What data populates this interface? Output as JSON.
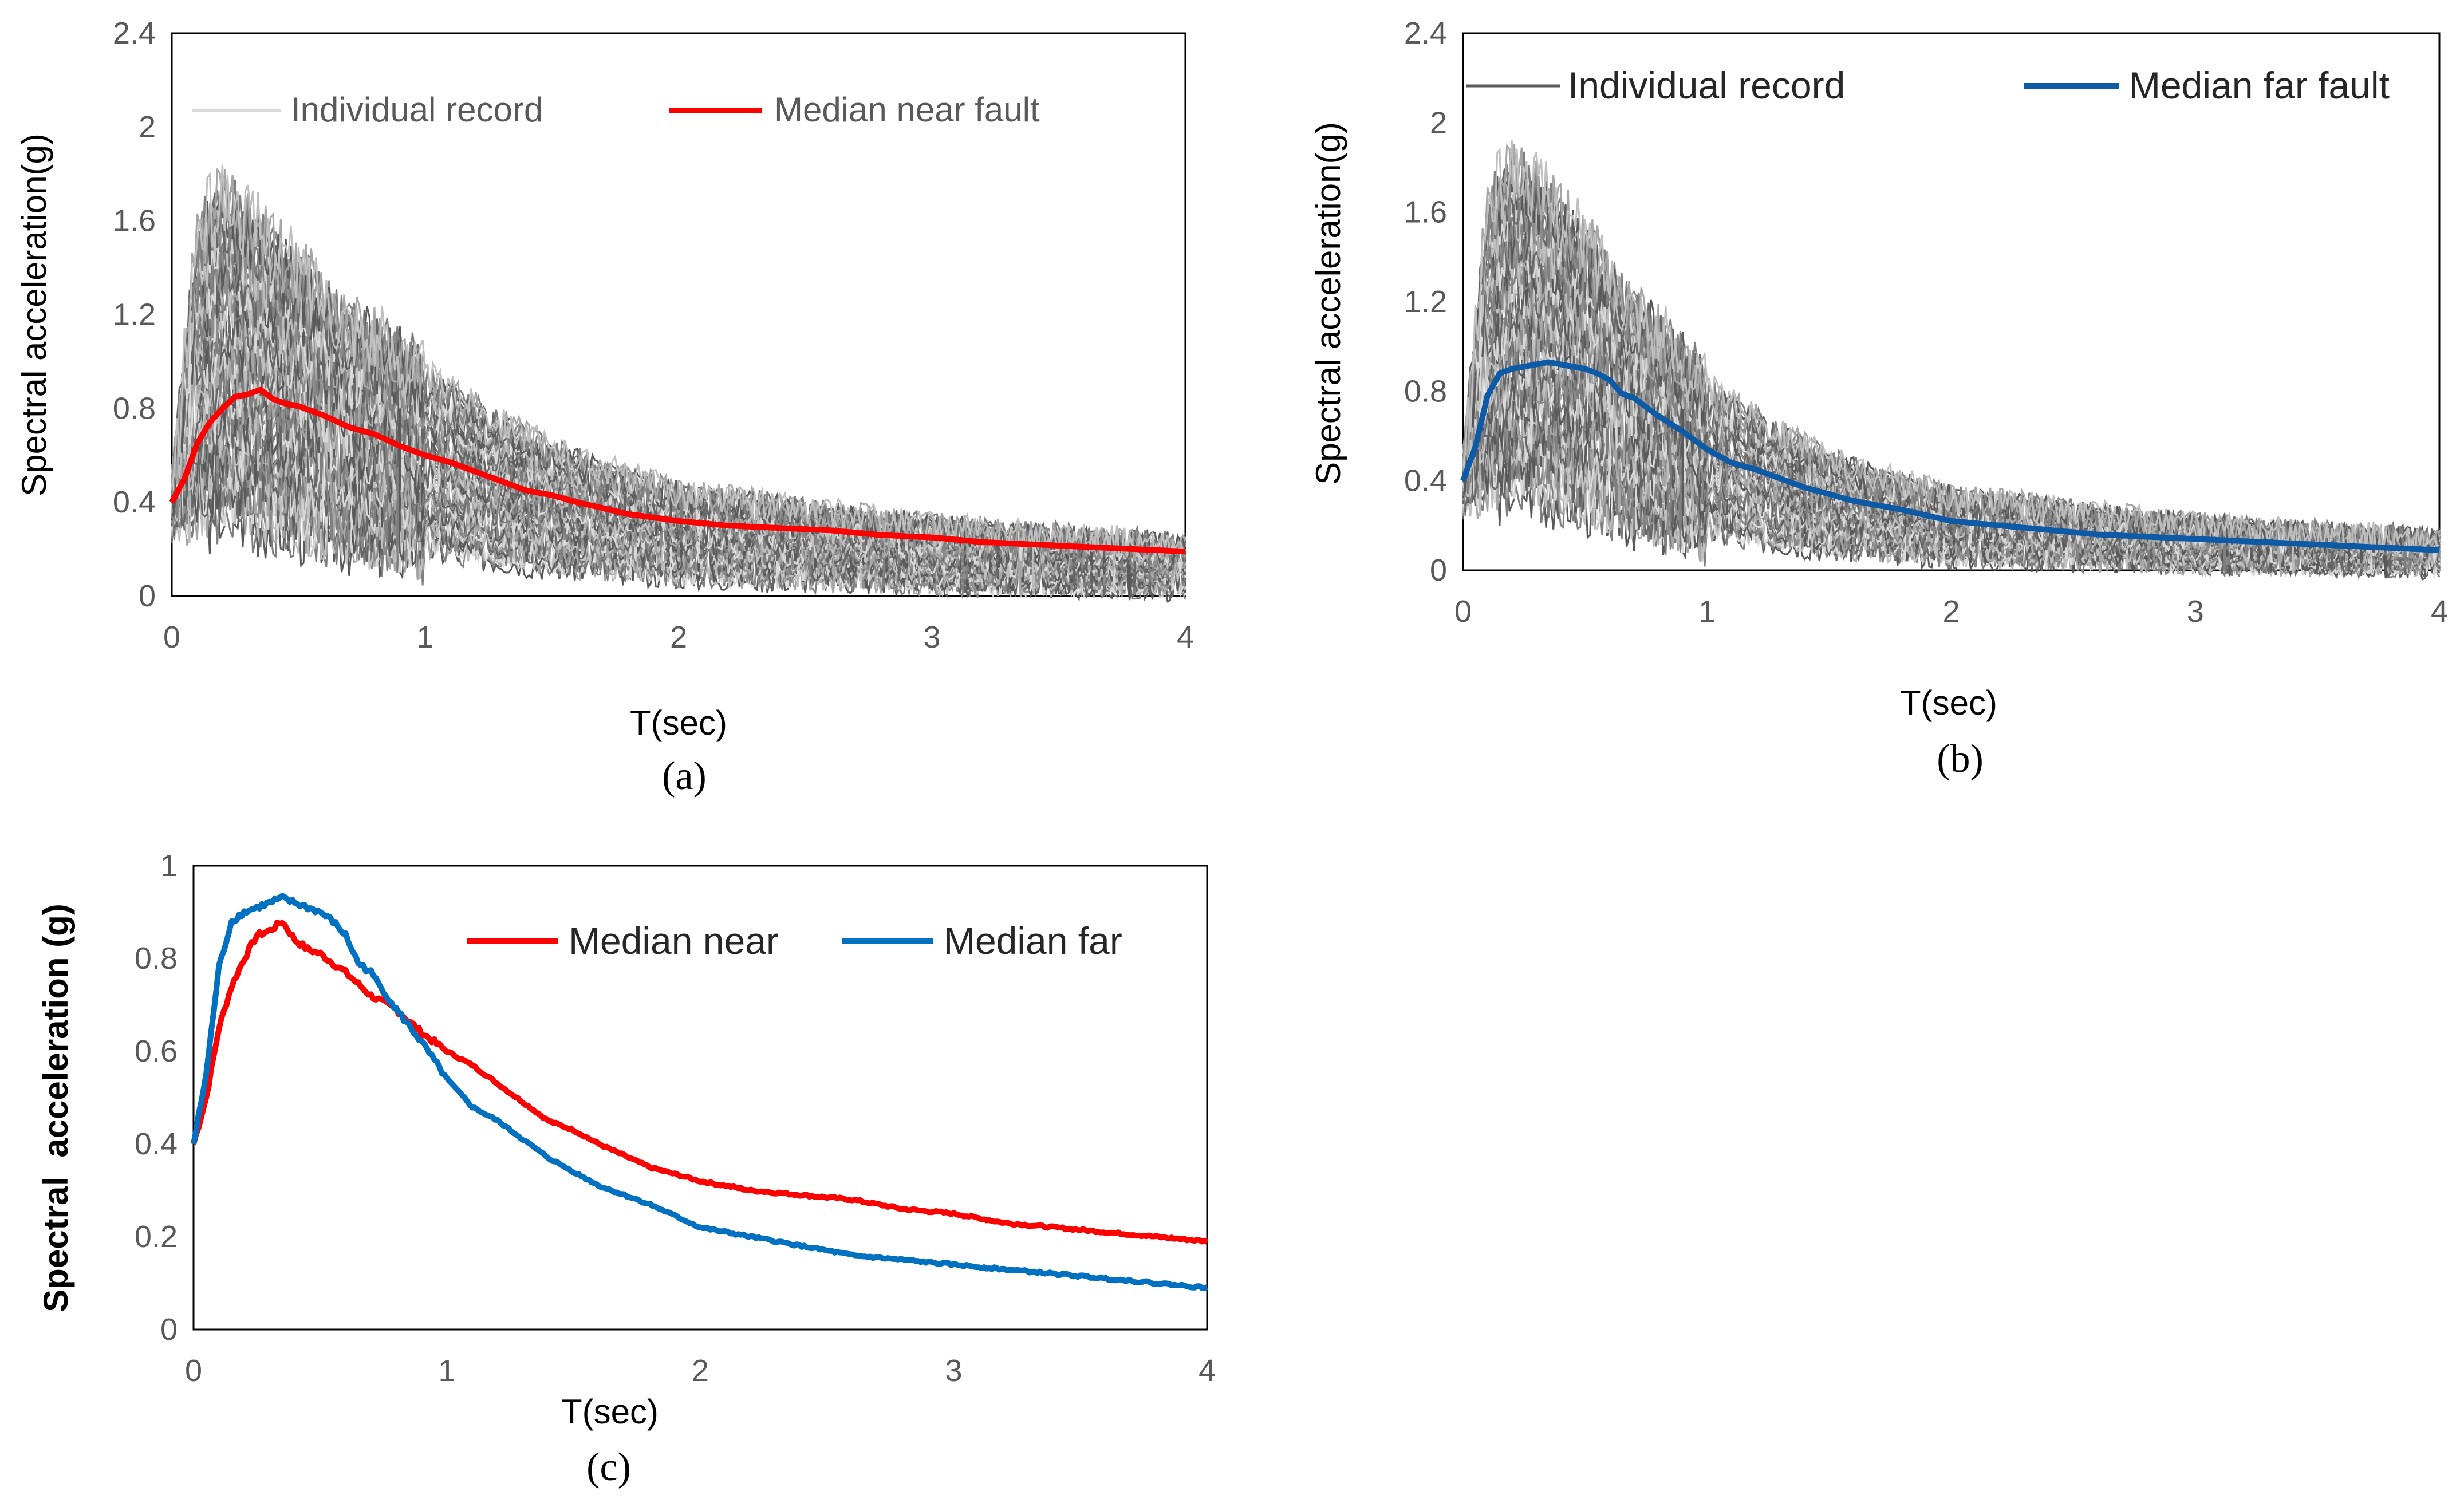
{
  "chart_data": [
    {
      "id": "a",
      "type": "line",
      "caption": "(a)",
      "xlabel": "T(sec)",
      "ylabel": "Spectral acceleration(g)",
      "xlim": [
        0,
        4
      ],
      "ylim": [
        0,
        2.4
      ],
      "x_ticks": [
        "0",
        "1",
        "2",
        "3",
        "4"
      ],
      "y_ticks": [
        "0",
        "0.4",
        "0.8",
        "1.2",
        "1.6",
        "2",
        "2.4"
      ],
      "legend_position": "top",
      "colors": {
        "median": "#ff0000",
        "records": "#7f7f7f"
      },
      "series": [
        {
          "name": "Individual record",
          "style": "gray-thin-bundle",
          "x": [
            0,
            0.1,
            0.2,
            0.3,
            0.5,
            0.7,
            1.0,
            1.5,
            2.0,
            3.0,
            4.0
          ],
          "values": [
            0.4,
            0.95,
            1.05,
            0.98,
            0.85,
            0.72,
            0.58,
            0.38,
            0.27,
            0.18,
            0.13
          ]
        },
        {
          "name": "Median near fault",
          "style": "median",
          "x": [
            0,
            0.05,
            0.1,
            0.15,
            0.2,
            0.25,
            0.3,
            0.35,
            0.4,
            0.45,
            0.5,
            0.6,
            0.7,
            0.8,
            0.9,
            1.0,
            1.1,
            1.2,
            1.3,
            1.4,
            1.5,
            1.6,
            1.8,
            2.0,
            2.2,
            2.4,
            2.6,
            2.8,
            3.0,
            3.2,
            3.4,
            3.6,
            3.8,
            4.0
          ],
          "values": [
            0.4,
            0.5,
            0.65,
            0.74,
            0.8,
            0.85,
            0.86,
            0.88,
            0.84,
            0.82,
            0.81,
            0.77,
            0.72,
            0.69,
            0.64,
            0.6,
            0.57,
            0.53,
            0.49,
            0.45,
            0.43,
            0.4,
            0.35,
            0.32,
            0.3,
            0.29,
            0.28,
            0.26,
            0.25,
            0.23,
            0.22,
            0.21,
            0.2,
            0.19
          ]
        }
      ]
    },
    {
      "id": "b",
      "type": "line",
      "caption": "(b)",
      "xlabel": "T(sec)",
      "ylabel": "Spectral acceleration(g)",
      "xlim": [
        0,
        4
      ],
      "ylim": [
        0,
        2.4
      ],
      "x_ticks": [
        "0",
        "1",
        "2",
        "3",
        "4"
      ],
      "y_ticks": [
        "0",
        "0.4",
        "0.8",
        "1.2",
        "1.6",
        "2",
        "2.4"
      ],
      "legend_position": "top",
      "colors": {
        "median": "#0d5aa7",
        "records": "#7f7f7f"
      },
      "series": [
        {
          "name": "Individual record",
          "style": "gray-thin-bundle",
          "x": [
            0,
            0.1,
            0.2,
            0.3,
            0.5,
            0.7,
            1.0,
            1.5,
            2.0,
            3.0,
            4.0
          ],
          "values": [
            0.4,
            1.0,
            1.1,
            1.05,
            0.9,
            0.72,
            0.5,
            0.3,
            0.2,
            0.12,
            0.08
          ]
        },
        {
          "name": "Median far fault",
          "style": "median",
          "x": [
            0,
            0.05,
            0.1,
            0.15,
            0.2,
            0.25,
            0.3,
            0.35,
            0.4,
            0.45,
            0.5,
            0.55,
            0.6,
            0.65,
            0.7,
            0.8,
            0.9,
            1.0,
            1.1,
            1.2,
            1.3,
            1.4,
            1.5,
            1.6,
            1.8,
            2.0,
            2.2,
            2.4,
            2.6,
            2.8,
            3.0,
            3.2,
            3.4,
            3.6,
            3.8,
            4.0
          ],
          "values": [
            0.4,
            0.55,
            0.78,
            0.88,
            0.9,
            0.91,
            0.92,
            0.93,
            0.92,
            0.91,
            0.9,
            0.88,
            0.85,
            0.79,
            0.77,
            0.69,
            0.62,
            0.54,
            0.48,
            0.45,
            0.41,
            0.37,
            0.34,
            0.31,
            0.27,
            0.22,
            0.2,
            0.18,
            0.16,
            0.15,
            0.14,
            0.13,
            0.12,
            0.11,
            0.1,
            0.09
          ]
        }
      ]
    },
    {
      "id": "c",
      "type": "line",
      "caption": "(c)",
      "xlabel": "T(sec)",
      "ylabel": "Spectral  acceleration (g)",
      "xlim": [
        0,
        4
      ],
      "ylim": [
        0,
        1
      ],
      "x_ticks": [
        "0",
        "1",
        "2",
        "3",
        "4"
      ],
      "y_ticks": [
        "0",
        "0.2",
        "0.4",
        "0.6",
        "0.8",
        "1"
      ],
      "legend_position": "top-right",
      "series": [
        {
          "name": "Median near",
          "color": "#ff0000",
          "x": [
            0,
            0.05,
            0.1,
            0.15,
            0.2,
            0.25,
            0.3,
            0.35,
            0.4,
            0.45,
            0.5,
            0.6,
            0.7,
            0.8,
            0.9,
            1.0,
            1.1,
            1.2,
            1.3,
            1.4,
            1.5,
            1.6,
            1.8,
            2.0,
            2.2,
            2.4,
            2.6,
            2.8,
            3.0,
            3.2,
            3.4,
            3.6,
            3.8,
            4.0
          ],
          "values": [
            0.4,
            0.5,
            0.65,
            0.74,
            0.8,
            0.85,
            0.86,
            0.88,
            0.84,
            0.82,
            0.81,
            0.77,
            0.72,
            0.69,
            0.64,
            0.6,
            0.57,
            0.53,
            0.49,
            0.45,
            0.43,
            0.4,
            0.35,
            0.32,
            0.3,
            0.29,
            0.28,
            0.26,
            0.25,
            0.23,
            0.22,
            0.21,
            0.2,
            0.19
          ]
        },
        {
          "name": "Median far",
          "color": "#0070c0",
          "x": [
            0,
            0.05,
            0.1,
            0.15,
            0.2,
            0.25,
            0.3,
            0.35,
            0.4,
            0.45,
            0.5,
            0.55,
            0.6,
            0.65,
            0.7,
            0.8,
            0.9,
            1.0,
            1.1,
            1.2,
            1.3,
            1.4,
            1.5,
            1.6,
            1.8,
            2.0,
            2.2,
            2.4,
            2.6,
            2.8,
            3.0,
            3.2,
            3.4,
            3.6,
            3.8,
            4.0
          ],
          "values": [
            0.4,
            0.55,
            0.78,
            0.88,
            0.9,
            0.91,
            0.92,
            0.93,
            0.92,
            0.91,
            0.9,
            0.88,
            0.85,
            0.79,
            0.77,
            0.69,
            0.62,
            0.54,
            0.48,
            0.45,
            0.41,
            0.37,
            0.34,
            0.31,
            0.27,
            0.22,
            0.2,
            0.18,
            0.16,
            0.15,
            0.14,
            0.13,
            0.12,
            0.11,
            0.1,
            0.09
          ]
        }
      ]
    }
  ]
}
